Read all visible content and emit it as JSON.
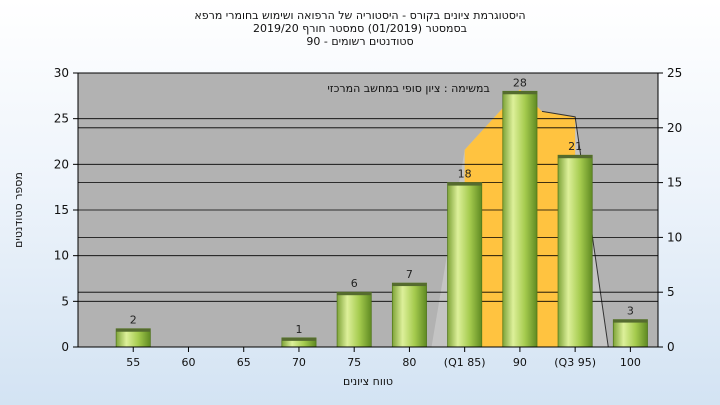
{
  "chart_data": {
    "type": "bar",
    "title_lines": [
      "היסטוגרמת ציונים בקורס - היסטוריה של הרפואה ושימוש בחומרי מרפא",
      "בסמסטר  (01/2019)  סמסטר חורף  2019/20",
      "סטודנטים רשומים - 90"
    ],
    "annotation": "במשימה : ציון סופי במחשב המרכזי",
    "xlabel": "טווח ציונים",
    "ylabel": "מספר סטודנטים",
    "categories": [
      "55",
      "60",
      "65",
      "70",
      "75",
      "80",
      "(Q1 85)",
      "90",
      "(Q3 95)",
      "100"
    ],
    "values": [
      2,
      0,
      0,
      1,
      6,
      7,
      18,
      28,
      21,
      3
    ],
    "data_labels": [
      "2",
      "",
      "",
      "1",
      "6",
      "7",
      "18",
      "28",
      "21",
      "3"
    ],
    "ylim_left": [
      0,
      30
    ],
    "yticks_left": [
      0,
      5,
      10,
      15,
      20,
      25,
      30
    ],
    "ylim_right": [
      0,
      25
    ],
    "yticks_right": [
      0,
      5,
      10,
      15,
      20,
      25
    ],
    "distribution_overlay": {
      "axis": "right",
      "x_positions": [
        5.4,
        6,
        7,
        7.4,
        8,
        8.6
      ],
      "values": [
        0,
        18,
        23.5,
        21.5,
        21,
        0
      ],
      "iqr_fill_color": "#ffc340",
      "outer_fill_color": "#c4c4c4",
      "range_category_index": [
        6,
        8
      ]
    },
    "grid": true,
    "colors": {
      "plot_background": "#b2b2b2",
      "bar_light": "#ddf09a",
      "bar_mid": "#a5cb4e",
      "bar_dark": "#5f8a22",
      "gridline": "#000000"
    }
  }
}
